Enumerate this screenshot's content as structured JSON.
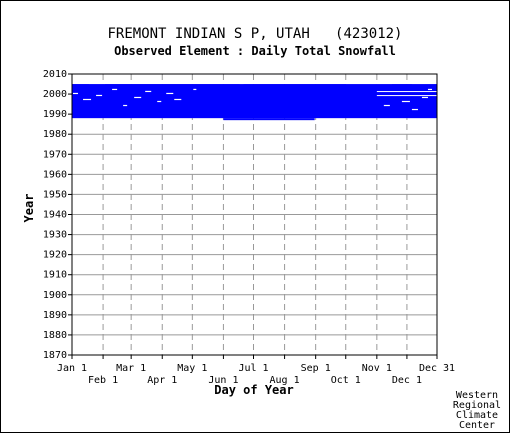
{
  "chart_data": {
    "type": "heatmap",
    "title": "FREMONT INDIAN S P, UTAH   (423012)",
    "subtitle": "Observed Element : Daily Total Snowfall",
    "xlabel": "Day of Year",
    "ylabel": "Year",
    "x_ticks_upper": [
      "Jan 1",
      "Mar 1",
      "May 1",
      "Jul 1",
      "Sep 1",
      "Nov 1",
      "Dec 31"
    ],
    "x_ticks_lower": [
      "Feb 1",
      "Apr 1",
      "Jun 1",
      "Aug 1",
      "Oct 1",
      "Dec 1"
    ],
    "xlim": [
      1,
      365
    ],
    "ylim": [
      1870,
      2010
    ],
    "y_ticks": [
      2010,
      2000,
      1990,
      1980,
      1970,
      1960,
      1950,
      1940,
      1930,
      1920,
      1910,
      1900,
      1890,
      1880,
      1870
    ],
    "grid": true,
    "data_color": "#0000ff",
    "observed_records": [
      {
        "day_start": 1,
        "day_end": 365,
        "year_start": 1988,
        "year_end": 2005
      },
      {
        "day_start": 152,
        "day_end": 243,
        "year_start": 1987,
        "year_end": 1988
      }
    ],
    "missing_records": [
      {
        "day_start": 2,
        "day_end": 7,
        "year_start": 2000,
        "year_end": 2000.6
      },
      {
        "day_start": 12,
        "day_end": 20,
        "year_start": 1997,
        "year_end": 1997.6
      },
      {
        "day_start": 18,
        "day_end": 34,
        "year_start": 2005,
        "year_end": 2006
      },
      {
        "day_start": 25,
        "day_end": 31,
        "year_start": 1999,
        "year_end": 1999.6
      },
      {
        "day_start": 41,
        "day_end": 46,
        "year_start": 2002,
        "year_end": 2002.6
      },
      {
        "day_start": 52,
        "day_end": 56,
        "year_start": 1994,
        "year_end": 1994.6
      },
      {
        "day_start": 63,
        "day_end": 70,
        "year_start": 1998,
        "year_end": 1998.6
      },
      {
        "day_start": 74,
        "day_end": 80,
        "year_start": 2001,
        "year_end": 2001.6
      },
      {
        "day_start": 86,
        "day_end": 90,
        "year_start": 1996,
        "year_end": 1996.6
      },
      {
        "day_start": 95,
        "day_end": 102,
        "year_start": 2000,
        "year_end": 2000.6
      },
      {
        "day_start": 103,
        "day_end": 110,
        "year_start": 1997,
        "year_end": 1997.6
      },
      {
        "day_start": 122,
        "day_end": 125,
        "year_start": 2002,
        "year_end": 2002.6
      },
      {
        "day_start": 168,
        "day_end": 172,
        "year_start": 2005,
        "year_end": 2006
      },
      {
        "day_start": 274,
        "day_end": 320,
        "year_start": 2005,
        "year_end": 2006
      },
      {
        "day_start": 305,
        "day_end": 365,
        "year_start": 2001,
        "year_end": 2001.5
      },
      {
        "day_start": 305,
        "day_end": 365,
        "year_start": 1999,
        "year_end": 1999.5
      },
      {
        "day_start": 312,
        "day_end": 318,
        "year_start": 1994,
        "year_end": 1994.6
      },
      {
        "day_start": 330,
        "day_end": 338,
        "year_start": 1996,
        "year_end": 1996.6
      },
      {
        "day_start": 340,
        "day_end": 346,
        "year_start": 1992,
        "year_end": 1992.6
      },
      {
        "day_start": 350,
        "day_end": 356,
        "year_start": 1998,
        "year_end": 1998.6
      },
      {
        "day_start": 356,
        "day_end": 360,
        "year_start": 2002,
        "year_end": 2002.6
      },
      {
        "day_start": 340,
        "day_end": 365,
        "year_start": 2005,
        "year_end": 2006
      }
    ]
  },
  "credit": [
    "Western",
    "Regional",
    "Climate",
    "Center"
  ]
}
